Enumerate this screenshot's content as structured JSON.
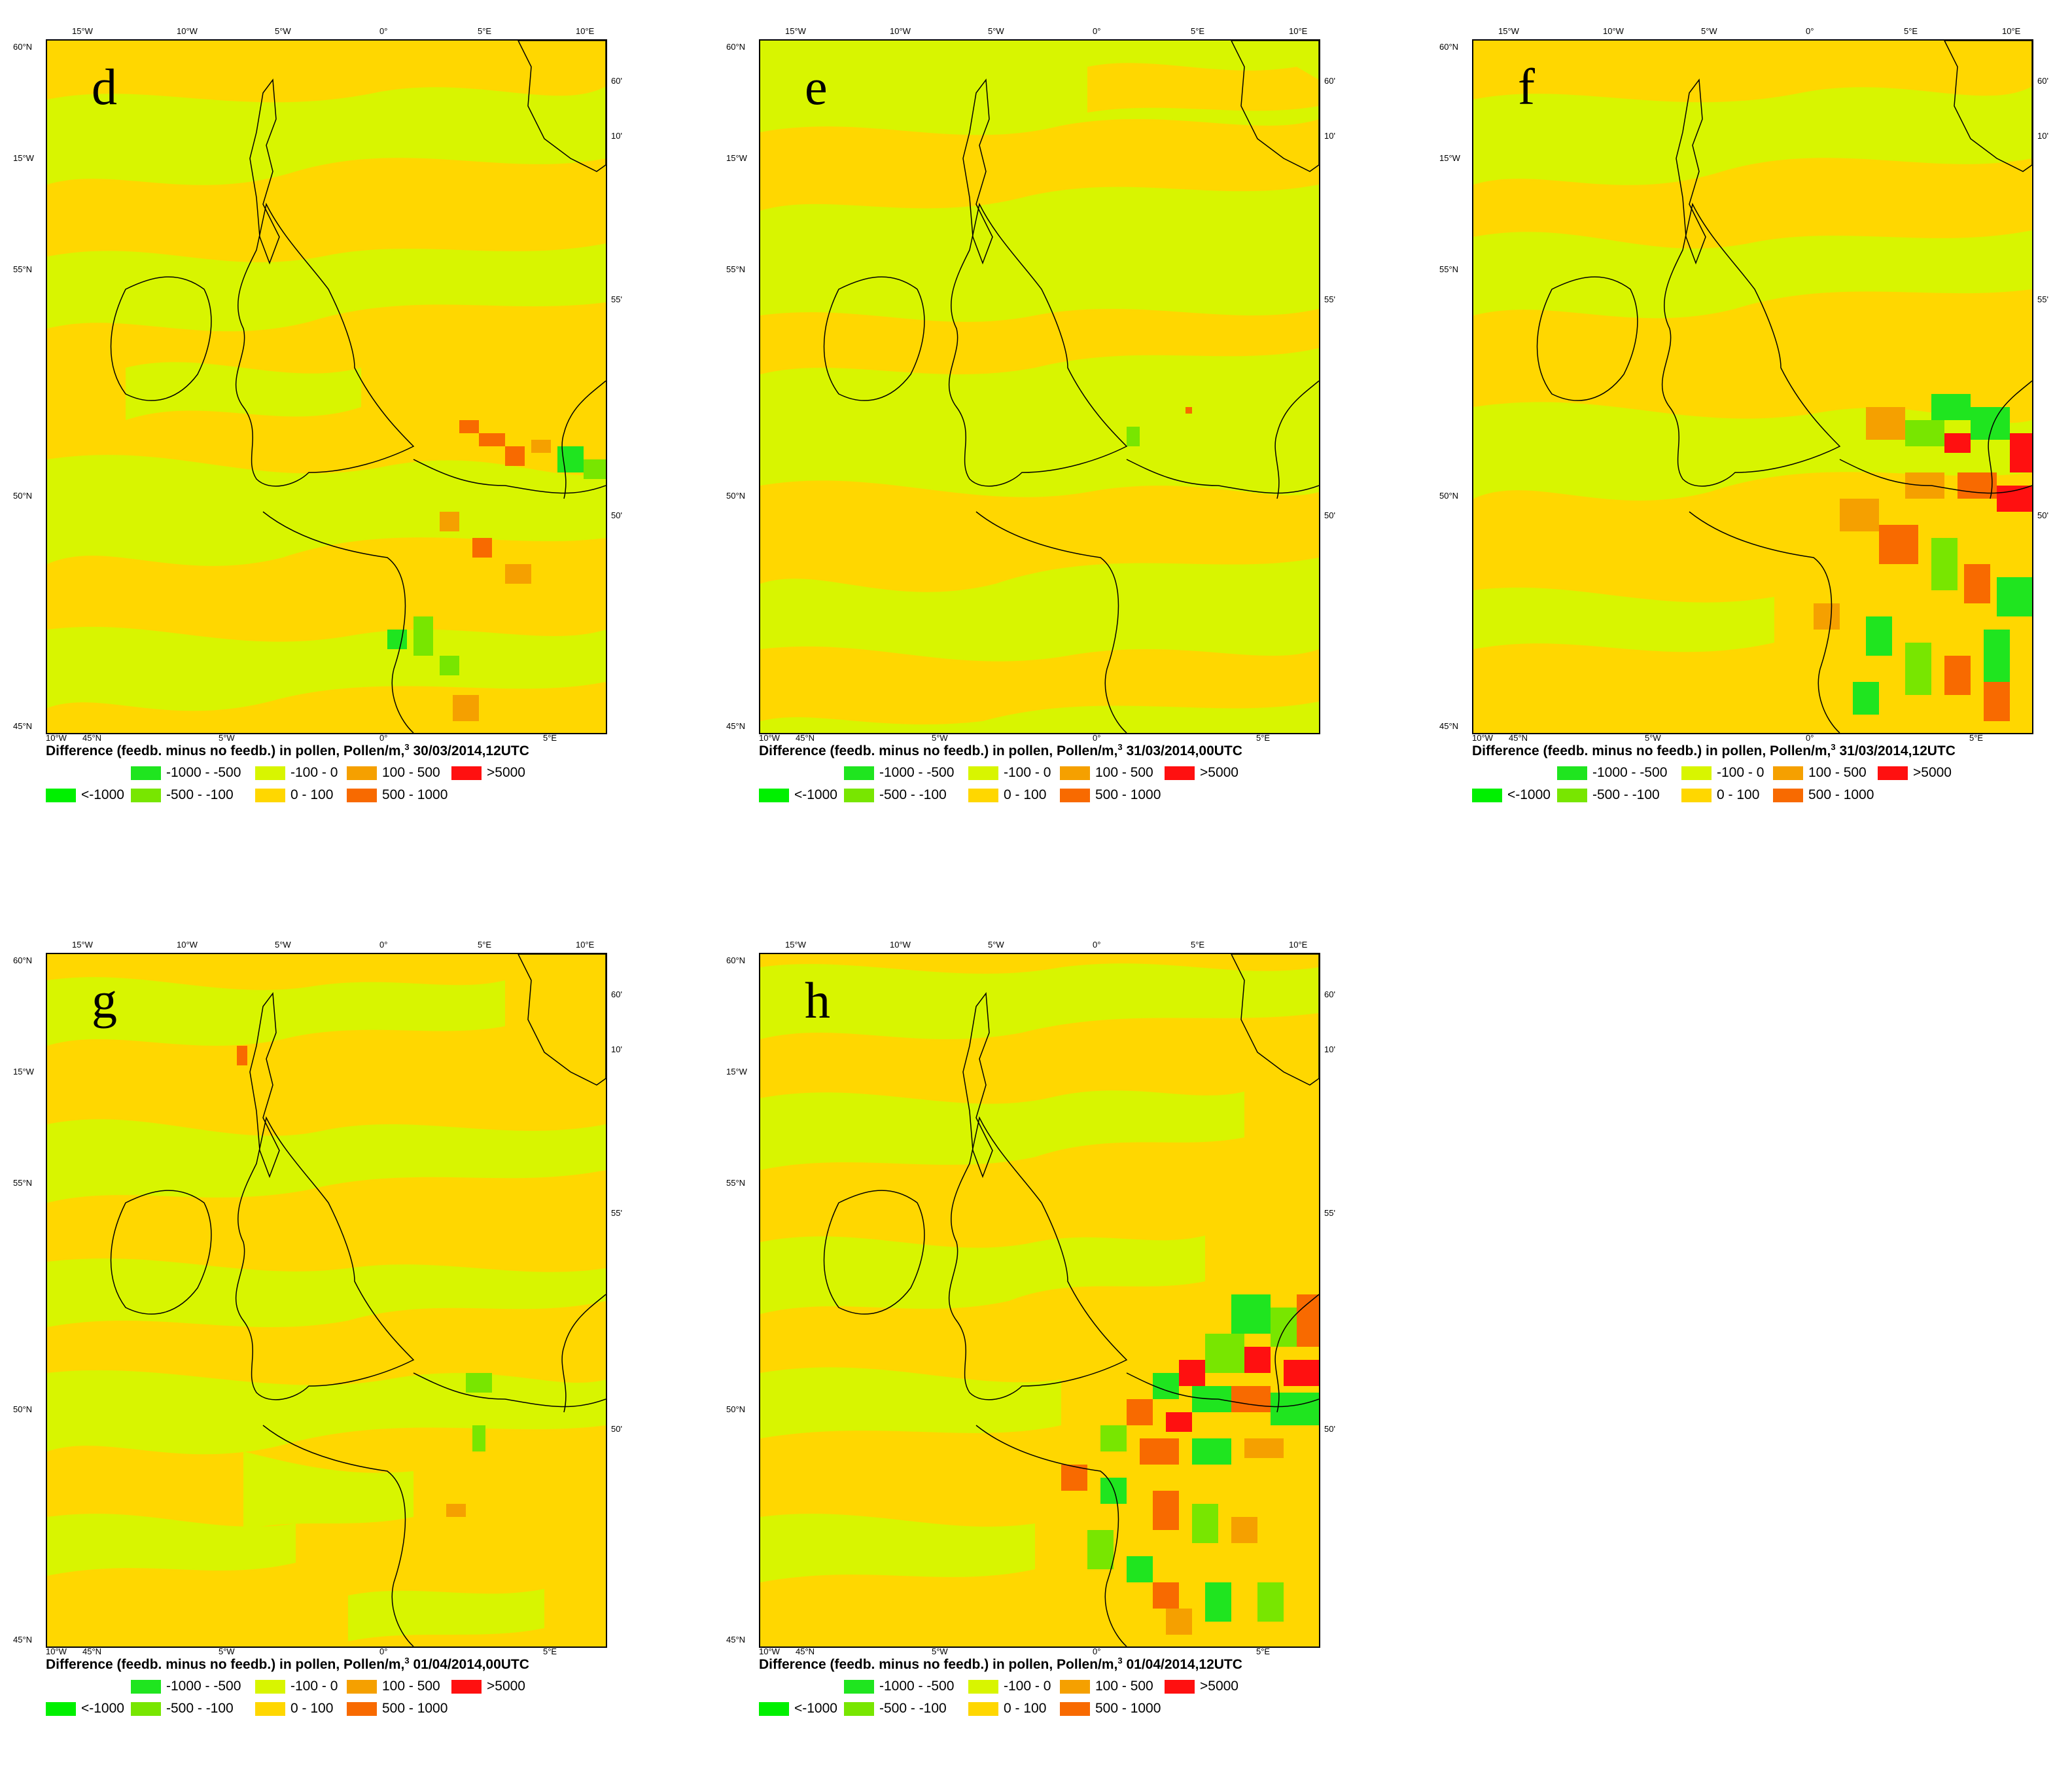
{
  "legend_title_units": "Pollen/m,",
  "superscript": "3",
  "legend_items_row1": [
    {
      "label": "-1000 - -500",
      "color": "#1fe51f"
    },
    {
      "label": "-100 - 0",
      "color": "#d8f500"
    },
    {
      "label": "100 - 500",
      "color": "#f5a000"
    },
    {
      "label": ">5000",
      "color": "#ff1010"
    }
  ],
  "legend_items_row2": [
    {
      "label": "<-1000",
      "color": "#00f000"
    },
    {
      "label": "-500 - -100",
      "color": "#78e600"
    },
    {
      "label": "0 - 100",
      "color": "#ffd700"
    },
    {
      "label": "500 - 1000",
      "color": "#f86a00"
    }
  ],
  "axis_labels": {
    "top": [
      "15°W",
      "10°W",
      "5°W",
      "0°",
      "5°E",
      "10°E"
    ],
    "left": [
      "60°N",
      "15°W",
      "55°N",
      "50°N",
      "45°N"
    ],
    "right": [
      "60'",
      "10'",
      "55'",
      "50'"
    ],
    "bottom": [
      "10°W",
      "45°N",
      "5°W",
      "0°",
      "5°E"
    ]
  },
  "panels": [
    {
      "letter": "d",
      "caption": "Difference (feedb. minus no feedb.) in pollen, Pollen/m,",
      "datetime": "30/03/2014,12UTC"
    },
    {
      "letter": "e",
      "caption": "Difference (feedb. minus no feedb.) in pollen, Pollen/m,",
      "datetime": "31/03/2014,00UTC"
    },
    {
      "letter": "f",
      "caption": "Difference (feedb. minus no feedb.) in pollen, Pollen/m,",
      "datetime": "31/03/2014,12UTC"
    },
    {
      "letter": "g",
      "caption": "Difference (feedb. minus no feedb.) in pollen, Pollen/m,",
      "datetime": "01/04/2014,00UTC"
    },
    {
      "letter": "h",
      "caption": "Difference (feedb. minus no feedb.) in pollen, Pollen/m,",
      "datetime": "01/04/2014,12UTC"
    }
  ]
}
